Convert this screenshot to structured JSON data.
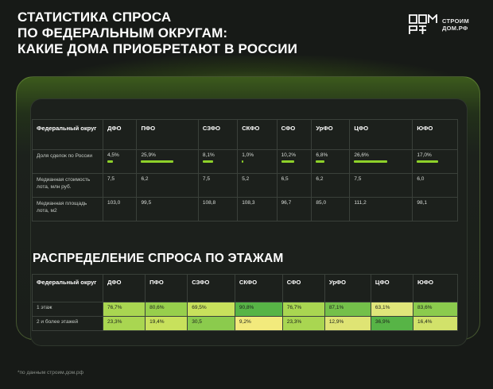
{
  "header": {
    "title_lines": [
      "Статистика спроса",
      "по федеральным округам:",
      "какие дома приобретают в России"
    ],
    "logo_line1": "СТРОИМ",
    "logo_line2": "ДОМ.РФ"
  },
  "table1": {
    "corner": "Федеральный округ",
    "columns": [
      "ДФО",
      "ПФО",
      "СЗФО",
      "СКФО",
      "СФО",
      "УрФО",
      "ЦФО",
      "ЮФО"
    ],
    "rows": [
      {
        "label": "Доля сделок по России",
        "values": [
          "4,5%",
          "25,9%",
          "8,1%",
          "1,0%",
          "10,2%",
          "6,8%",
          "26,6%",
          "17,0%"
        ],
        "bar_fractions": [
          0.045,
          0.259,
          0.081,
          0.01,
          0.102,
          0.068,
          0.266,
          0.17
        ]
      },
      {
        "label": "Медианная стоимость лота, млн руб.",
        "values": [
          "7,5",
          "6,2",
          "7,5",
          "5,2",
          "6,5",
          "6,2",
          "7,5",
          "6,0"
        ]
      },
      {
        "label": "Медианная площадь лота, м2",
        "values": [
          "103,0",
          "99,5",
          "108,8",
          "108,3",
          "96,7",
          "85,0",
          "111,2",
          "98,1"
        ]
      }
    ],
    "bar_color": "#8ed12a"
  },
  "section_title": "РАСПРЕДЕЛЕНИЕ СПРОСА ПО ЭТАЖАМ",
  "table2": {
    "corner": "Федеральный округ",
    "columns": [
      "ДФО",
      "ПФО",
      "СЗФО",
      "СКФО",
      "СФО",
      "УрФО",
      "ЦФО",
      "ЮФО"
    ],
    "rows": [
      {
        "label": "1 этаж",
        "values": [
          "76,7%",
          "80,6%",
          "69,5%",
          "90,8%",
          "76,7%",
          "87,1%",
          "63,1%",
          "83,6%"
        ],
        "colors": [
          "#a9d651",
          "#97cf4c",
          "#c8e15c",
          "#57b446",
          "#a9d651",
          "#74c04a",
          "#e0e67a",
          "#8bcb4d"
        ]
      },
      {
        "label": "2 и более этажей",
        "values": [
          "23,3%",
          "19,4%",
          "30,5",
          "9,2%",
          "23,3%",
          "12,9%",
          "36,9%",
          "16,4%"
        ],
        "colors": [
          "#a9d651",
          "#c8e15c",
          "#8bcb4d",
          "#f2ea7c",
          "#a9d651",
          "#dfe474",
          "#57b446",
          "#d2e26a"
        ]
      }
    ]
  },
  "footnote": "*по данным строим.дом.рф"
}
